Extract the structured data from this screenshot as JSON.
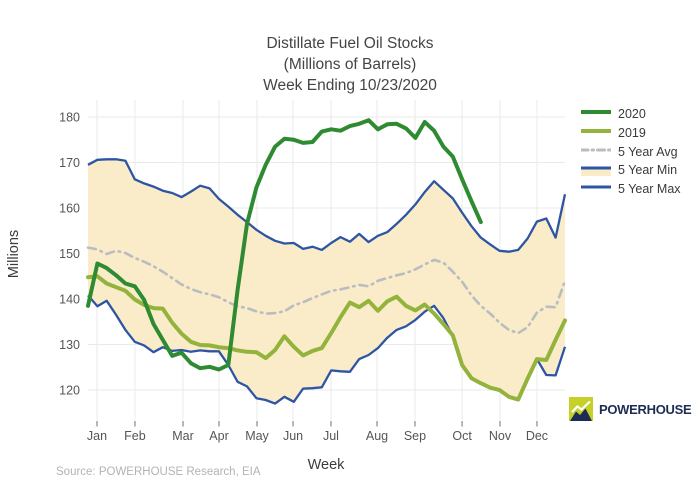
{
  "header": {
    "title_lines": [
      "Distillate Fuel Oil Stocks",
      "(Millions of Barrels)",
      "Week Ending 10/23/2020"
    ]
  },
  "axes": {
    "y_label": "Millions",
    "x_label": "Week",
    "y_ticks": [
      120,
      130,
      140,
      150,
      160,
      170,
      180
    ],
    "y_range_shown": [
      113,
      181
    ]
  },
  "months": [
    {
      "label": "Jan",
      "week": 1.96
    },
    {
      "label": "Feb",
      "week": 6.02
    },
    {
      "label": "Mar",
      "week": 11.16
    },
    {
      "label": "Apr",
      "week": 15.01
    },
    {
      "label": "May",
      "week": 19.07
    },
    {
      "label": "Jun",
      "week": 22.92
    },
    {
      "label": "Jul",
      "week": 26.98
    },
    {
      "label": "Aug",
      "week": 31.9
    },
    {
      "label": "Sep",
      "week": 35.96
    },
    {
      "label": "Oct",
      "week": 41.0
    },
    {
      "label": "Nov",
      "week": 45.05
    },
    {
      "label": "Dec",
      "week": 49.0
    }
  ],
  "legend": {
    "items": [
      {
        "label": "2020",
        "series": "2020",
        "style": "solid",
        "width": 4,
        "color": "#2e8b31"
      },
      {
        "label": "2019",
        "series": "2019",
        "style": "solid",
        "width": 4,
        "color": "#93b33d"
      },
      {
        "label": "5 Year Avg",
        "series": "5 Year Avg",
        "style": "dashdot",
        "width": 3,
        "color": "#b9bcc1"
      },
      {
        "label": "5 Year Min",
        "series": "5 Year Min",
        "style": "line-fill",
        "width": 3,
        "color": "#2d55a4",
        "fill": "#faecc8"
      },
      {
        "label": "5 Year Max",
        "series": "5 Year Max",
        "style": "solid",
        "width": 3,
        "color": "#2d55a4"
      }
    ]
  },
  "source": {
    "text": "Source: POWERHOUSE Research, EIA"
  },
  "logo": {
    "text": "POWERHOUSE"
  },
  "colors": {
    "green2020": "#2e8b31",
    "olive2019": "#93b33d",
    "avg_gray": "#b9bcc1",
    "band_blue": "#2d55a4",
    "band_fill": "#faecc8",
    "grid": "#eaeaea",
    "tick": "#999999",
    "tick_text": "#555555",
    "title_text": "#444444",
    "logo_green": "#c5d028",
    "logo_navy": "#1d2c55"
  },
  "chart_data": {
    "type": "line",
    "title": "Distillate Fuel Oil Stocks (Millions of Barrels) Week Ending 10/23/2020",
    "xlabel": "Week",
    "ylabel": "Millions",
    "x_unit": "week_of_year",
    "x_tick_labels": [
      "Jan",
      "Feb",
      "Mar",
      "Apr",
      "May",
      "Jun",
      "Jul",
      "Aug",
      "Sep",
      "Oct",
      "Nov",
      "Dec"
    ],
    "ylim": [
      113,
      181
    ],
    "grid": true,
    "legend_position": "right",
    "band": {
      "upper": "5 Year Max",
      "lower": "5 Year Min",
      "fill": "#faecc8"
    },
    "series": [
      {
        "name": "2020",
        "color": "#2e8b31",
        "values": [
          138.5,
          147.8,
          146.8,
          145.2,
          143.4,
          142.8,
          139.8,
          134.5,
          131.0,
          127.5,
          128.2,
          125.9,
          124.8,
          125.1,
          124.5,
          125.5,
          142.0,
          156.5,
          164.5,
          169.5,
          173.5,
          175.2,
          175.0,
          174.3,
          174.5,
          176.8,
          177.3,
          177.0,
          178.0,
          178.5,
          179.3,
          177.3,
          178.4,
          178.5,
          177.5,
          175.4,
          178.9,
          177.0,
          173.5,
          171.3,
          166.3,
          161.5,
          156.9
        ]
      },
      {
        "name": "2019",
        "color": "#93b33d",
        "values": [
          144.8,
          145.0,
          143.4,
          142.6,
          141.8,
          139.9,
          138.7,
          138.0,
          137.9,
          134.8,
          132.4,
          130.6,
          129.9,
          129.8,
          129.4,
          129.2,
          128.7,
          128.4,
          128.3,
          127.0,
          128.8,
          131.8,
          129.5,
          127.6,
          128.6,
          129.2,
          132.5,
          136.0,
          139.2,
          138.2,
          139.6,
          137.4,
          139.5,
          140.5,
          138.5,
          137.5,
          138.8,
          136.8,
          134.5,
          132.0,
          125.5,
          122.6,
          121.5,
          120.5,
          120.0,
          118.5,
          117.9,
          122.5,
          126.8,
          126.6,
          131.0,
          135.3
        ]
      },
      {
        "name": "5 Year Avg",
        "color": "#b9bcc1",
        "values": [
          151.3,
          150.9,
          149.9,
          150.6,
          150.1,
          149.0,
          148.2,
          147.2,
          146.0,
          144.6,
          143.2,
          142.2,
          141.5,
          141.0,
          140.4,
          139.3,
          138.4,
          138.0,
          137.3,
          136.8,
          136.9,
          137.3,
          138.6,
          139.3,
          140.2,
          141.0,
          141.8,
          142.1,
          142.6,
          143.1,
          142.8,
          144.0,
          144.6,
          145.2,
          145.7,
          146.5,
          147.6,
          148.6,
          148.0,
          146.0,
          143.8,
          140.8,
          138.5,
          136.8,
          134.8,
          133.2,
          132.5,
          133.8,
          137.0,
          138.3,
          138.2,
          144.0
        ]
      },
      {
        "name": "5 Year Min",
        "color": "#2d55a4",
        "values": [
          140.8,
          138.4,
          139.6,
          136.5,
          133.2,
          130.6,
          129.8,
          128.3,
          129.4,
          128.6,
          128.8,
          128.4,
          128.7,
          128.5,
          128.5,
          125.5,
          121.8,
          120.8,
          118.2,
          117.8,
          117.0,
          118.5,
          117.4,
          120.3,
          120.4,
          120.6,
          124.3,
          124.1,
          124.0,
          126.8,
          127.7,
          129.2,
          131.5,
          133.2,
          134.0,
          135.4,
          137.2,
          138.5,
          135.8,
          131.8,
          125.5,
          122.6,
          121.5,
          120.5,
          119.9,
          118.4,
          117.9,
          122.3,
          126.8,
          123.3,
          123.2,
          129.5
        ]
      },
      {
        "name": "5 Year Max",
        "color": "#2d55a4",
        "values": [
          169.5,
          170.6,
          170.7,
          170.7,
          170.4,
          166.3,
          165.4,
          164.7,
          163.8,
          163.3,
          162.4,
          163.6,
          164.9,
          164.3,
          162.0,
          160.3,
          158.5,
          156.9,
          155.2,
          153.9,
          152.8,
          152.2,
          152.3,
          151.0,
          151.5,
          150.8,
          152.3,
          153.6,
          152.6,
          154.3,
          152.5,
          153.9,
          154.7,
          156.5,
          158.5,
          160.8,
          163.5,
          165.9,
          164.0,
          162.1,
          159.0,
          156.0,
          153.5,
          152.0,
          150.6,
          150.4,
          150.8,
          153.3,
          157.0,
          157.7,
          153.5,
          163.0
        ]
      }
    ]
  }
}
